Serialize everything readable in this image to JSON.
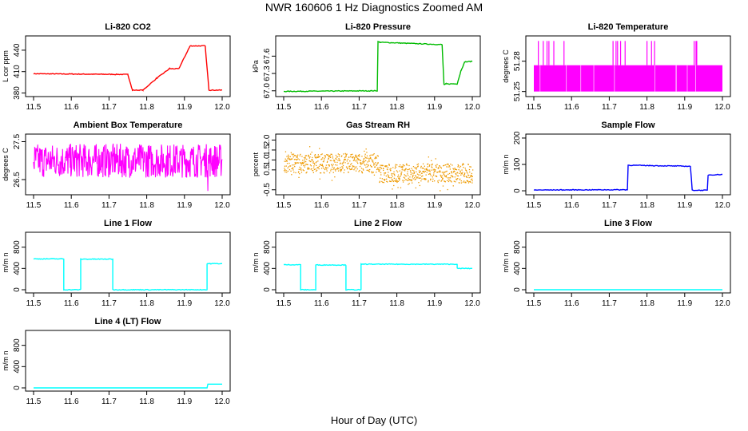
{
  "figure": {
    "title": "NWR  160606  1 Hz Diagnostics Zoomed AM",
    "xlabel": "Hour of Day (UTC)"
  },
  "colors": {
    "co2": "#ff0000",
    "pressure": "#00bb00",
    "temperature": "#ff00ff",
    "rh": "#ee9a00",
    "sample_flow": "#0000ff",
    "line_flow": "#00ffff"
  },
  "chart_data": [
    {
      "type": "line",
      "title": "Li-820 CO2",
      "ylabel": "L cor ppm",
      "xlim": [
        11.5,
        12.0
      ],
      "ylim": [
        375,
        460
      ],
      "xticks": [
        "11.5",
        "11.6",
        "11.7",
        "11.8",
        "11.9",
        "12.0"
      ],
      "yticks": [
        "380",
        "410",
        "440"
      ],
      "color_key": "co2",
      "series": [
        {
          "name": "CO2",
          "x": [
            11.5,
            11.75,
            11.75,
            11.762,
            11.762,
            11.79,
            11.79,
            11.825,
            11.825,
            11.86,
            11.86,
            11.885,
            11.885,
            11.915,
            11.915,
            11.955,
            11.955,
            11.965,
            11.965,
            12.0
          ],
          "y": [
            407,
            406,
            406,
            384,
            384,
            384,
            384,
            400,
            400,
            414,
            414,
            414,
            414,
            446,
            446,
            446,
            446,
            384,
            384,
            384
          ]
        }
      ]
    },
    {
      "type": "line",
      "title": "Li-820 Pressure",
      "ylabel": "kPa",
      "xlim": [
        11.5,
        12.0
      ],
      "ylim": [
        66.9,
        67.95
      ],
      "xticks": [
        "11.5",
        "11.6",
        "11.7",
        "11.8",
        "11.9",
        "12.0"
      ],
      "yticks": [
        "67.0",
        "67.3",
        "67.6"
      ],
      "color_key": "pressure",
      "series": [
        {
          "name": "Pressure",
          "x": [
            11.5,
            11.748,
            11.75,
            11.755,
            11.92,
            11.925,
            11.93,
            11.96,
            11.97,
            11.98,
            12.0
          ],
          "y": [
            66.99,
            67.0,
            67.85,
            67.84,
            67.8,
            67.1,
            67.12,
            67.12,
            67.35,
            67.5,
            67.51
          ]
        }
      ]
    },
    {
      "type": "line",
      "title": "Li-820 Temperature",
      "ylabel": "degrees C",
      "xlim": [
        11.5,
        12.0
      ],
      "ylim": [
        51.245,
        51.305
      ],
      "xticks": [
        "11.5",
        "11.6",
        "11.7",
        "11.8",
        "11.9",
        "12.0"
      ],
      "yticks": [
        "51.25",
        "51.28"
      ],
      "color_key": "temperature",
      "series": [
        {
          "name": "Temperature",
          "band": [
            51.25,
            51.276
          ],
          "spikes_to": 51.3,
          "spike_x": [
            11.512,
            11.525,
            11.535,
            11.54,
            11.553,
            11.58,
            11.71,
            11.718,
            11.722,
            11.73,
            11.742,
            11.8,
            11.812,
            11.82,
            11.925,
            11.93,
            11.932
          ]
        }
      ]
    },
    {
      "type": "line",
      "title": "Ambient Box Temperature",
      "ylabel": "degrees C",
      "xlim": [
        11.5,
        12.0
      ],
      "ylim": [
        26.1,
        27.7
      ],
      "xticks": [
        "11.5",
        "11.6",
        "11.7",
        "11.8",
        "11.9",
        "12.0"
      ],
      "yticks": [
        "26.5",
        "27.5"
      ],
      "color_key": "temperature",
      "series": [
        {
          "name": "Box Temperature",
          "center": 27.0,
          "spread": 0.45,
          "outlier_min": 26.2
        }
      ]
    },
    {
      "type": "line",
      "title": "Gas Stream RH",
      "ylabel": "percent",
      "xlim": [
        11.5,
        12.0
      ],
      "ylim": [
        -0.75,
        2.3
      ],
      "xticks": [
        "11.5",
        "11.6",
        "11.7",
        "11.8",
        "11.9",
        "12.0"
      ],
      "yticks": [
        "-0.5",
        "0.5",
        "1.0",
        "1.5",
        "2.0"
      ],
      "color_key": "rh",
      "series": [
        {
          "name": "RH",
          "x_break": 11.75,
          "center_before": 0.85,
          "center_after": 0.35,
          "spread": 0.8
        }
      ]
    },
    {
      "type": "line",
      "title": "Sample Flow",
      "ylabel": "m/m n",
      "xlim": [
        11.5,
        12.0
      ],
      "ylim": [
        -15,
        215
      ],
      "xticks": [
        "11.5",
        "11.6",
        "11.7",
        "11.8",
        "11.9",
        "12.0"
      ],
      "yticks": [
        "0",
        "100",
        "200"
      ],
      "color_key": "sample_flow",
      "series": [
        {
          "name": "Sample Flow",
          "x": [
            11.5,
            11.748,
            11.75,
            11.915,
            11.92,
            11.96,
            11.962,
            12.0
          ],
          "y": [
            3,
            4,
            97,
            93,
            2,
            2,
            60,
            62
          ]
        }
      ]
    },
    {
      "type": "line",
      "title": "Line 1 Flow",
      "ylabel": "m/m n",
      "xlim": [
        11.5,
        12.0
      ],
      "ylim": [
        -60,
        1080
      ],
      "xticks": [
        "11.5",
        "11.6",
        "11.7",
        "11.8",
        "11.9",
        "12.0"
      ],
      "yticks": [
        "0",
        "400",
        "800"
      ],
      "color_key": "line_flow",
      "series": [
        {
          "name": "Line 1",
          "x": [
            11.5,
            11.58,
            11.58,
            11.625,
            11.625,
            11.71,
            11.71,
            11.96,
            11.96,
            12.0
          ],
          "y": [
            580,
            580,
            0,
            0,
            575,
            575,
            0,
            0,
            490,
            490
          ]
        }
      ]
    },
    {
      "type": "line",
      "title": "Line 2 Flow",
      "ylabel": "m/m n",
      "xlim": [
        11.5,
        12.0
      ],
      "ylim": [
        -60,
        1080
      ],
      "xticks": [
        "11.5",
        "11.6",
        "11.7",
        "11.8",
        "11.9",
        "12.0"
      ],
      "yticks": [
        "0",
        "400",
        "800"
      ],
      "color_key": "line_flow",
      "series": [
        {
          "name": "Line 2",
          "x": [
            11.5,
            11.545,
            11.545,
            11.585,
            11.585,
            11.665,
            11.665,
            11.705,
            11.705,
            11.96,
            11.96,
            12.0
          ],
          "y": [
            470,
            470,
            0,
            0,
            465,
            465,
            0,
            0,
            480,
            480,
            400,
            400
          ]
        }
      ]
    },
    {
      "type": "line",
      "title": "Line 3 Flow",
      "ylabel": "m/m n",
      "xlim": [
        11.5,
        12.0
      ],
      "ylim": [
        -60,
        1080
      ],
      "xticks": [
        "11.5",
        "11.6",
        "11.7",
        "11.8",
        "11.9",
        "12.0"
      ],
      "yticks": [
        "0",
        "400",
        "800"
      ],
      "color_key": "line_flow",
      "series": [
        {
          "name": "Line 3",
          "x": [
            11.5,
            12.0
          ],
          "y": [
            0,
            0
          ]
        }
      ]
    },
    {
      "type": "line",
      "title": "Line 4 (LT) Flow",
      "ylabel": "m/m n",
      "xlim": [
        11.5,
        12.0
      ],
      "ylim": [
        -60,
        1080
      ],
      "xticks": [
        "11.5",
        "11.6",
        "11.7",
        "11.8",
        "11.9",
        "12.0"
      ],
      "yticks": [
        "0",
        "400",
        "800"
      ],
      "color_key": "line_flow",
      "series": [
        {
          "name": "Line 4",
          "x": [
            11.5,
            11.96,
            11.962,
            12.0
          ],
          "y": [
            0,
            0,
            70,
            70
          ]
        }
      ]
    }
  ]
}
